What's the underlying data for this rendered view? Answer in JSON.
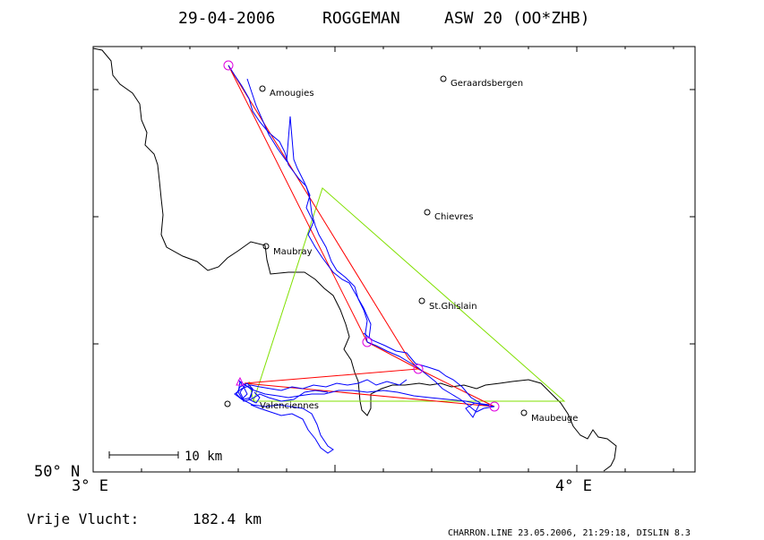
{
  "header": {
    "date": "29-04-2006",
    "pilot": "ROGGEMAN",
    "glider": "ASW 20 (OO*ZHB)"
  },
  "axes": {
    "lat_label": "50° N",
    "lon_left_label": "3° E",
    "lon_right_label": "4° E"
  },
  "scale_bar": {
    "label": "10 km"
  },
  "distance": {
    "label": "Vrije Vlucht:",
    "value": "182.4 km"
  },
  "footer": "CHARRON.LINE 23.05.2006, 21:29:18, DISLIN 8.3",
  "colors": {
    "track": "#0000ff",
    "route": "#ff0000",
    "fai_triangle": "#80e000",
    "turnpoints": "#e000e0",
    "border": "#000000"
  },
  "towns": [
    {
      "name": "Amougies"
    },
    {
      "name": "Geraardsbergen"
    },
    {
      "name": "Chievres"
    },
    {
      "name": "Maubray"
    },
    {
      "name": "St.Ghislain"
    },
    {
      "name": "Valenciennes"
    },
    {
      "name": "Maubeuge"
    }
  ]
}
